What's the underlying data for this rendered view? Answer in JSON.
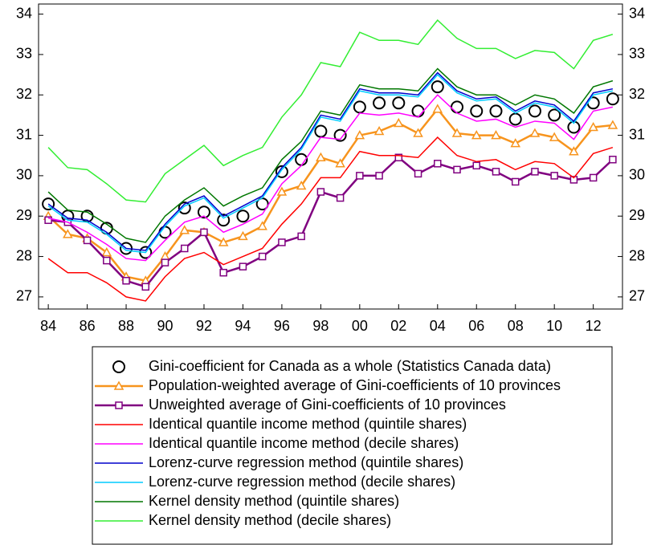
{
  "chart_data": {
    "type": "line",
    "categories": [
      "84",
      null,
      "86",
      null,
      "88",
      null,
      "90",
      null,
      "92",
      null,
      "94",
      null,
      "96",
      null,
      "98",
      null,
      "00",
      null,
      "02",
      null,
      "04",
      null,
      "06",
      null,
      "08",
      null,
      "10",
      null,
      "12",
      null
    ],
    "ylim": [
      26.7,
      34.25
    ],
    "yticks": [
      27,
      28,
      29,
      30,
      31,
      32,
      33,
      34
    ],
    "series": [
      {
        "name": "Gini-coefficient for Canada as a whole (Statistics Canada data)",
        "color": "#000000",
        "marker": "circle",
        "line": false,
        "values": [
          29.3,
          29.0,
          29.0,
          28.7,
          28.2,
          28.1,
          28.6,
          29.2,
          29.1,
          28.9,
          29.0,
          29.3,
          30.1,
          30.4,
          31.1,
          31.0,
          31.7,
          31.8,
          31.8,
          31.6,
          32.2,
          31.7,
          31.6,
          31.6,
          31.4,
          31.6,
          31.5,
          31.2,
          31.8,
          31.9
        ]
      },
      {
        "name": "Population-weighted average of Gini-coefficients of 10 provinces",
        "color": "#f7941d",
        "marker": "triangle",
        "line": true,
        "values": [
          29.0,
          28.55,
          28.45,
          28.1,
          27.5,
          27.4,
          28.0,
          28.65,
          28.6,
          28.35,
          28.5,
          28.75,
          29.6,
          29.75,
          30.45,
          30.3,
          31.0,
          31.1,
          31.3,
          31.05,
          31.65,
          31.05,
          31.0,
          31.0,
          30.8,
          31.05,
          30.95,
          30.6,
          31.2,
          31.25
        ]
      },
      {
        "name": "Unweighted average of Gini-coefficients of 10 provinces",
        "color": "#800080",
        "marker": "square",
        "line": true,
        "values": [
          28.9,
          28.85,
          28.4,
          27.9,
          27.4,
          27.25,
          27.85,
          28.2,
          28.6,
          27.6,
          27.75,
          28.0,
          28.35,
          28.5,
          29.6,
          29.45,
          30.0,
          30.0,
          30.45,
          30.05,
          30.3,
          30.15,
          30.25,
          30.1,
          29.85,
          30.1,
          30.0,
          29.9,
          29.95,
          30.4
        ]
      },
      {
        "name": "Identical quantile income method (quintile shares)",
        "color": "#ff0000",
        "marker": "none",
        "line": true,
        "values": [
          27.95,
          27.6,
          27.6,
          27.35,
          27.0,
          26.9,
          27.5,
          27.95,
          28.1,
          27.8,
          28.0,
          28.2,
          28.8,
          29.3,
          29.95,
          29.95,
          30.6,
          30.5,
          30.5,
          30.45,
          30.95,
          30.5,
          30.35,
          30.4,
          30.15,
          30.35,
          30.3,
          29.95,
          30.55,
          30.7
        ]
      },
      {
        "name": "Identical quantile income method (decile shares)",
        "color": "#ff00ff",
        "marker": "none",
        "line": true,
        "values": [
          28.95,
          28.85,
          28.6,
          28.3,
          27.95,
          27.9,
          28.4,
          28.85,
          29.0,
          28.6,
          28.8,
          29.05,
          29.8,
          30.25,
          30.95,
          30.9,
          31.55,
          31.5,
          31.55,
          31.45,
          32.0,
          31.55,
          31.35,
          31.4,
          31.2,
          31.35,
          31.3,
          30.9,
          31.6,
          31.7
        ]
      },
      {
        "name": "Lorenz-curve regression method (quintile shares)",
        "color": "#0000cc",
        "marker": "none",
        "line": true,
        "values": [
          29.3,
          28.95,
          28.9,
          28.6,
          28.2,
          28.15,
          28.8,
          29.3,
          29.5,
          29.0,
          29.25,
          29.5,
          30.2,
          30.7,
          31.5,
          31.4,
          32.15,
          32.05,
          32.05,
          32.0,
          32.55,
          32.1,
          31.9,
          31.95,
          31.6,
          31.85,
          31.75,
          31.35,
          32.05,
          32.15
        ]
      },
      {
        "name": "Lorenz-curve regression method (decile shares)",
        "color": "#00ccff",
        "marker": "none",
        "line": true,
        "values": [
          29.25,
          28.9,
          28.85,
          28.55,
          28.15,
          28.1,
          28.75,
          29.25,
          29.45,
          28.95,
          29.2,
          29.45,
          30.15,
          30.65,
          31.45,
          31.35,
          32.1,
          32.0,
          32.0,
          31.95,
          32.5,
          32.05,
          31.85,
          31.9,
          31.55,
          31.8,
          31.7,
          31.3,
          32.0,
          32.1
        ]
      },
      {
        "name": "Kernel density method (quintile shares)",
        "color": "#007700",
        "marker": "none",
        "line": true,
        "values": [
          29.6,
          29.15,
          29.1,
          28.8,
          28.45,
          28.35,
          29.0,
          29.4,
          29.7,
          29.25,
          29.5,
          29.7,
          30.4,
          30.85,
          31.6,
          31.5,
          32.25,
          32.15,
          32.15,
          32.1,
          32.65,
          32.2,
          32.0,
          32.0,
          31.75,
          32.0,
          31.9,
          31.55,
          32.2,
          32.35
        ]
      },
      {
        "name": "Kernel density method (decile shares)",
        "color": "#33ee33",
        "marker": "none",
        "line": true,
        "values": [
          30.7,
          30.2,
          30.15,
          29.8,
          29.4,
          29.35,
          30.05,
          30.4,
          30.75,
          30.25,
          30.5,
          30.7,
          31.45,
          32.0,
          32.8,
          32.7,
          33.55,
          33.35,
          33.35,
          33.25,
          33.85,
          33.4,
          33.15,
          33.15,
          32.9,
          33.1,
          33.05,
          32.65,
          33.35,
          33.5
        ]
      }
    ]
  }
}
